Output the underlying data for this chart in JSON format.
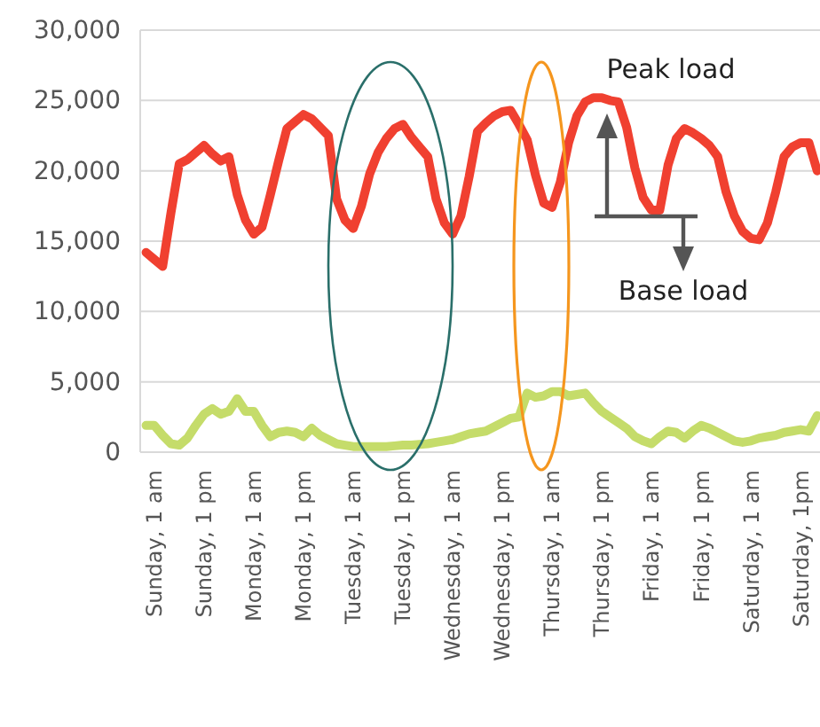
{
  "chart_data": {
    "type": "line",
    "categories": [
      null,
      "Sunday, 1 am",
      null,
      null,
      null,
      null,
      null,
      "Sunday, 1 pm",
      null,
      null,
      null,
      null,
      null,
      "Monday, 1 am",
      null,
      null,
      null,
      null,
      null,
      "Monday, 1 pm",
      null,
      null,
      null,
      null,
      null,
      "Tuesday, 1 am",
      null,
      null,
      null,
      null,
      null,
      "Tuesday, 1 pm",
      null,
      null,
      null,
      null,
      null,
      "Wednesday, 1 am",
      null,
      null,
      null,
      null,
      null,
      "Wednesday, 1 pm",
      null,
      null,
      null,
      null,
      null,
      "Thursday, 1 am",
      null,
      null,
      null,
      null,
      null,
      "Thursday, 1 pm",
      null,
      null,
      null,
      null,
      null,
      "Friday, 1 am",
      null,
      null,
      null,
      null,
      null,
      "Friday, 1 pm",
      null,
      null,
      null,
      null,
      null,
      "Saturday, 1 am",
      null,
      null,
      null,
      null,
      null,
      "Saturday, 1pm",
      null,
      null
    ],
    "ylim": [
      0,
      30000
    ],
    "yticks": [
      {
        "value": 0,
        "label": "0"
      },
      {
        "value": 5000,
        "label": "5,000"
      },
      {
        "value": 10000,
        "label": "10,000"
      },
      {
        "value": 15000,
        "label": "15,000"
      },
      {
        "value": 20000,
        "label": "20,000"
      },
      {
        "value": 25000,
        "label": "25,000"
      },
      {
        "value": 30000,
        "label": "30,000"
      }
    ],
    "grid": "y",
    "annotations": [
      "Peak load",
      "Base load"
    ],
    "series": [
      {
        "color": "#f04030",
        "values": [
          14200,
          13700,
          13200,
          17000,
          20500,
          20800,
          21300,
          21800,
          21200,
          20700,
          21000,
          18300,
          16500,
          15500,
          16000,
          18300,
          20700,
          23000,
          23500,
          24000,
          23700,
          23100,
          22500,
          18000,
          16500,
          15900,
          17500,
          19800,
          21300,
          22300,
          23000,
          23300,
          22400,
          21700,
          21000,
          18000,
          16300,
          15500,
          16800,
          19600,
          22800,
          23400,
          23900,
          24200,
          24300,
          23300,
          22200,
          19700,
          17700,
          17400,
          19200,
          22000,
          23900,
          24900,
          25200,
          25200,
          25000,
          24900,
          23100,
          20200,
          18100,
          17200,
          17200,
          20400,
          22300,
          23000,
          22700,
          22300,
          21800,
          21000,
          18500,
          16800,
          15700,
          15200,
          15100,
          16300,
          18500,
          21000,
          21700,
          22000,
          22000,
          20000
        ]
      },
      {
        "color": "#c5dc6a",
        "values": [
          1900,
          1900,
          1200,
          600,
          500,
          1000,
          1900,
          2700,
          3100,
          2700,
          2900,
          3800,
          2900,
          2900,
          1900,
          1100,
          1400,
          1500,
          1400,
          1100,
          1700,
          1200,
          900,
          600,
          500,
          400,
          400,
          400,
          400,
          400,
          450,
          500,
          500,
          550,
          600,
          700,
          800,
          900,
          1100,
          1300,
          1400,
          1500,
          1800,
          2100,
          2400,
          2500,
          4200,
          3900,
          4000,
          4300,
          4300,
          4000,
          4100,
          4200,
          3500,
          2900,
          2500,
          2100,
          1700,
          1100,
          800,
          600,
          1100,
          1500,
          1400,
          1000,
          1500,
          1900,
          1700,
          1400,
          1100,
          800,
          700,
          800,
          1000,
          1100,
          1200,
          1400,
          1500,
          1600,
          1500,
          2600
        ]
      }
    ]
  }
}
